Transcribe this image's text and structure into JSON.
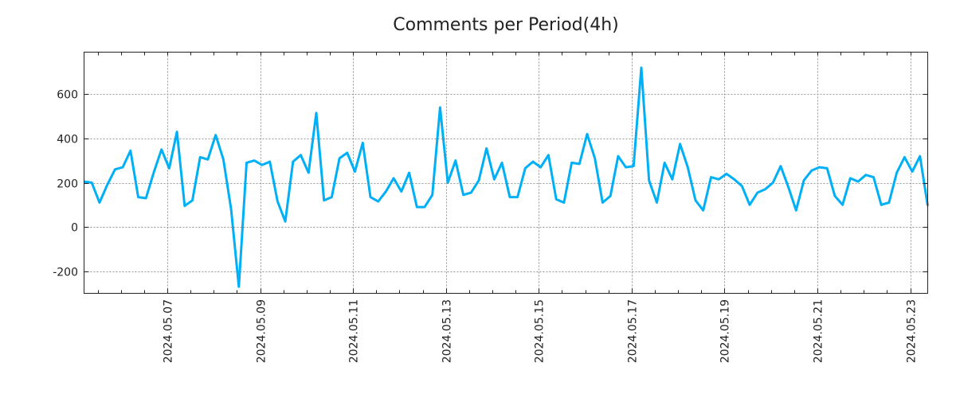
{
  "chart_data": {
    "type": "line",
    "title": "Comments per Period(4h)",
    "xlabel": "",
    "ylabel": "",
    "x_start": "2024-05-05 05:00",
    "interval_hours": 4,
    "xlim_days_of_may": [
      5.2083,
      23.375
    ],
    "ylim": [
      -300,
      790
    ],
    "grid": true,
    "line_color": "#00b0f6",
    "yticks": [
      -200,
      0,
      200,
      400,
      600
    ],
    "ytick_labels": [
      "-200",
      "0",
      "200",
      "400",
      "600"
    ],
    "xticks_days_of_may": [
      7,
      9,
      11,
      13,
      15,
      17,
      19,
      21,
      23
    ],
    "xtick_labels": [
      "2024.05.07",
      "2024.05.09",
      "2024.05.11",
      "2024.05.13",
      "2024.05.15",
      "2024.05.17",
      "2024.05.19",
      "2024.05.21",
      "2024.05.23"
    ],
    "series": [
      {
        "name": "comments",
        "values": [
          205,
          200,
          110,
          190,
          260,
          270,
          345,
          135,
          130,
          245,
          350,
          265,
          430,
          95,
          120,
          315,
          305,
          415,
          305,
          80,
          -270,
          290,
          300,
          280,
          295,
          115,
          25,
          295,
          325,
          245,
          515,
          120,
          135,
          310,
          335,
          250,
          380,
          135,
          115,
          160,
          220,
          160,
          245,
          90,
          90,
          145,
          540,
          200,
          300,
          145,
          155,
          210,
          355,
          215,
          290,
          135,
          135,
          265,
          295,
          270,
          325,
          125,
          110,
          290,
          285,
          420,
          310,
          110,
          140,
          320,
          270,
          275,
          720,
          210,
          110,
          290,
          215,
          375,
          270,
          120,
          75,
          225,
          215,
          240,
          215,
          185,
          100,
          155,
          170,
          200,
          275,
          180,
          75,
          210,
          255,
          270,
          265,
          140,
          100,
          220,
          205,
          235,
          225,
          100,
          110,
          245,
          315,
          250,
          320,
          95
        ]
      }
    ]
  }
}
